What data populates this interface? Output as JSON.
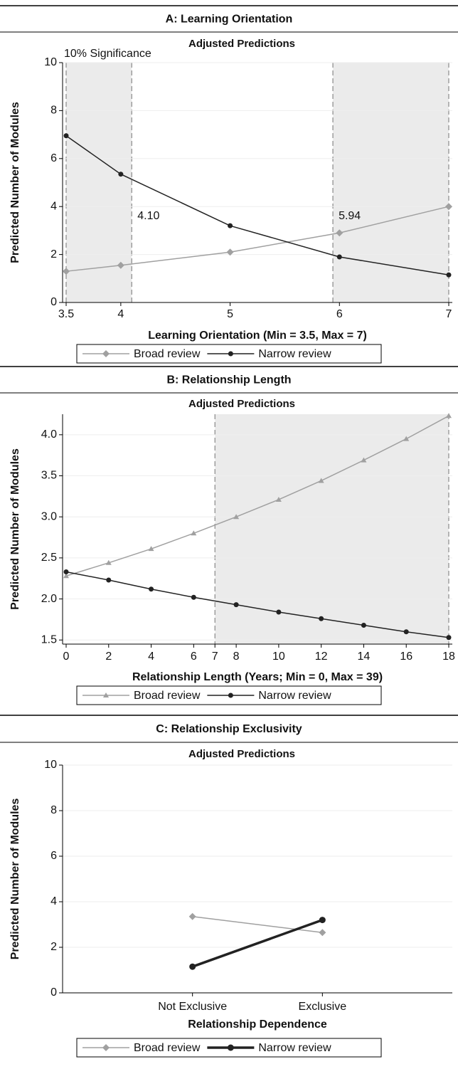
{
  "chart_data": [
    {
      "type": "line",
      "title": "A: Learning Orientation",
      "subtitle": "Adjusted Predictions",
      "xlabel": "Learning Orientation (Min = 3.5, Max = 7)",
      "ylabel": "Predicted Number of Modules",
      "x": [
        3.5,
        4,
        5,
        6,
        7
      ],
      "series": [
        {
          "name": "Broad review",
          "color": "#a0a0a0",
          "marker": "diamond",
          "values": [
            1.3,
            1.55,
            2.1,
            2.9,
            4.0
          ]
        },
        {
          "name": "Narrow review",
          "color": "#222222",
          "marker": "circle",
          "values": [
            6.95,
            5.35,
            3.2,
            1.9,
            1.15
          ]
        }
      ],
      "xlim": [
        3.5,
        7
      ],
      "ylim": [
        0,
        10
      ],
      "xticks": [
        3.5,
        4,
        5,
        6,
        7
      ],
      "yticks": [
        0,
        2,
        4,
        6,
        8,
        10
      ],
      "significance_regions": [
        [
          3.5,
          4.1
        ],
        [
          5.94,
          7
        ]
      ],
      "threshold_labels": [
        {
          "value": 4.1,
          "label": "4.10"
        },
        {
          "value": 5.94,
          "label": "5.94"
        }
      ],
      "annotation": "10% Significance"
    },
    {
      "type": "line",
      "title": "B: Relationship Length",
      "subtitle": "Adjusted Predictions",
      "xlabel": "Relationship Length (Years; Min = 0, Max = 39)",
      "ylabel": "Predicted Number of Modules",
      "x": [
        0,
        2,
        4,
        6,
        8,
        10,
        12,
        14,
        16,
        18
      ],
      "series": [
        {
          "name": "Broad review",
          "color": "#a0a0a0",
          "marker": "triangle",
          "values": [
            2.28,
            2.44,
            2.61,
            2.8,
            3.0,
            3.21,
            3.44,
            3.69,
            3.95,
            4.23
          ]
        },
        {
          "name": "Narrow review",
          "color": "#222222",
          "marker": "circle",
          "values": [
            2.33,
            2.23,
            2.12,
            2.02,
            1.93,
            1.84,
            1.76,
            1.68,
            1.6,
            1.53
          ]
        }
      ],
      "xlim": [
        0,
        18
      ],
      "ylim": [
        1.45,
        4.25
      ],
      "xticks": [
        0,
        2,
        4,
        6,
        7,
        8,
        10,
        12,
        14,
        16,
        18
      ],
      "yticks": [
        {
          "value": 1.5,
          "label": "1.5"
        },
        {
          "value": 2,
          "label": "2.0"
        },
        {
          "value": 2.5,
          "label": "2.5"
        },
        {
          "value": 3,
          "label": "3.0"
        },
        {
          "value": 3.5,
          "label": "3.5"
        },
        {
          "value": 4,
          "label": "4.0"
        }
      ],
      "significance_regions": [
        [
          7,
          18
        ]
      ]
    },
    {
      "type": "line",
      "title": "C: Relationship Exclusivity",
      "subtitle": "Adjusted Predictions",
      "xlabel": "Relationship Dependence",
      "ylabel": "Predicted Number of Modules",
      "categories": [
        "Not Exclusive",
        "Exclusive"
      ],
      "series": [
        {
          "name": "Broad review",
          "color": "#a0a0a0",
          "marker": "diamond",
          "values": [
            3.35,
            2.65
          ]
        },
        {
          "name": "Narrow review",
          "color": "#222222",
          "marker": "circle",
          "thick": true,
          "values": [
            1.15,
            3.2
          ]
        }
      ],
      "ylim": [
        0,
        10
      ],
      "yticks": [
        0,
        2,
        4,
        6,
        8,
        10
      ]
    }
  ]
}
